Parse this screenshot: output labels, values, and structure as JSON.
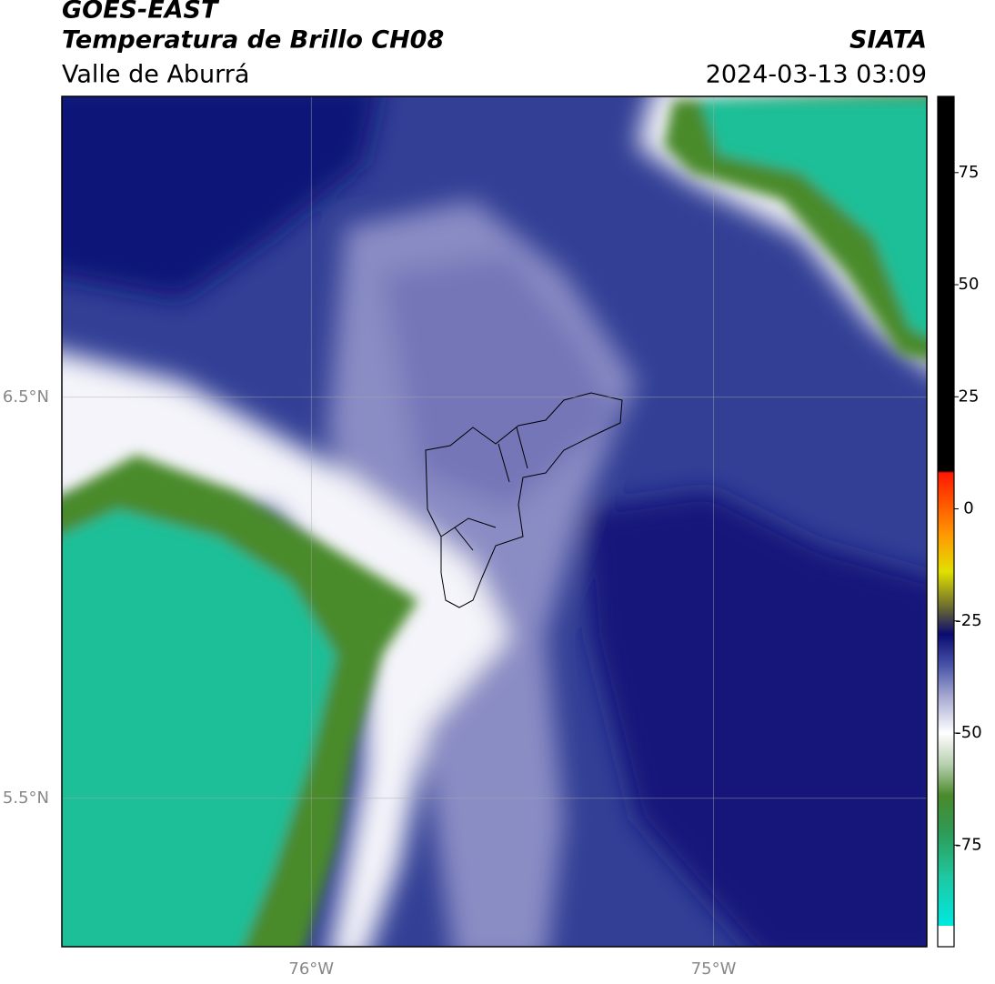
{
  "chart_data": {
    "type": "map",
    "title": "GOES-EAST",
    "subtitle": "Temperatura de Brillo CH08",
    "source": "SIATA",
    "region": "Valle de Aburrá",
    "datetime": "2024-03-13 03:09",
    "xlim": [
      -76.62,
      -74.47
    ],
    "ylim": [
      5.13,
      7.25
    ],
    "xticks": [
      {
        "value": -76,
        "label": "76°W"
      },
      {
        "value": -75,
        "label": "75°W"
      }
    ],
    "yticks": [
      {
        "value": 6.5,
        "label": "6.5°N"
      },
      {
        "value": 5.5,
        "label": "5.5°N"
      }
    ],
    "grid": true,
    "clim": [
      -93,
      92
    ],
    "cticks": [
      75,
      50,
      25,
      0,
      -25,
      -50,
      -75
    ],
    "colorscale": [
      [
        -93,
        "#00e8e0"
      ],
      [
        -82,
        "#1fc7a0"
      ],
      [
        -72,
        "#2e9a55"
      ],
      [
        -64,
        "#4a8a2a"
      ],
      [
        -57,
        "#b8d0b0"
      ],
      [
        -50,
        "#ffffff"
      ],
      [
        -42,
        "#a8aad2"
      ],
      [
        -35,
        "#4a55a8"
      ],
      [
        -28,
        "#0a0a70"
      ],
      [
        -22,
        "#6a6a30"
      ],
      [
        -14,
        "#e0e000"
      ],
      [
        -6,
        "#ff9a00"
      ],
      [
        8,
        "#ff1800"
      ],
      [
        8.5,
        "#000000"
      ],
      [
        92,
        "#000000"
      ]
    ]
  }
}
